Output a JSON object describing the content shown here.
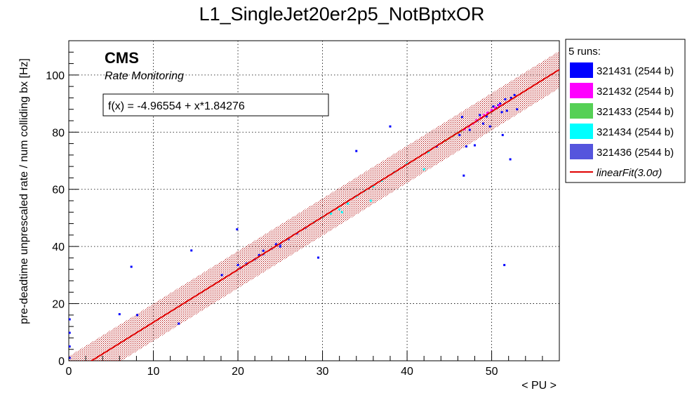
{
  "chart_data": {
    "type": "scatter",
    "title": "L1_SingleJet20er2p5_NotBptxOR",
    "xlabel": "< PU >",
    "ylabel": "pre-deadtime unprescaled rate / num colliding bx [Hz]",
    "xlim": [
      0,
      58
    ],
    "ylim": [
      0,
      112
    ],
    "xticks": [
      0,
      10,
      20,
      30,
      40,
      50
    ],
    "yticks": [
      0,
      20,
      40,
      60,
      80,
      100
    ],
    "grid": true,
    "branding": {
      "experiment": "CMS",
      "subtitle": "Rate Monitoring"
    },
    "fit_label": "f(x) = -4.96554 + x*1.84276",
    "fit": {
      "intercept": -4.96554,
      "slope": 1.84276,
      "band_halfwidth": 6.5,
      "color": "#e00000",
      "band_color": "#b00000"
    },
    "legend": {
      "header": "5 runs:",
      "position": "right",
      "fit_entry": "linearFit(3.0σ)"
    },
    "series": [
      {
        "name": "321431 (2544 b)",
        "color": "#0000ff",
        "points": [
          [
            0.1,
            14.5
          ],
          [
            0.1,
            9.8
          ],
          [
            0.1,
            5.0
          ],
          [
            0.1,
            1.0
          ],
          [
            6.0,
            16.3
          ],
          [
            7.4,
            32.9
          ],
          [
            8.1,
            16.0
          ],
          [
            13.0,
            13.0
          ],
          [
            14.5,
            38.6
          ],
          [
            18.1,
            30.0
          ],
          [
            19.9,
            46.0
          ],
          [
            20.0,
            33.5
          ],
          [
            20.3,
            32.5
          ],
          [
            21.0,
            34.0
          ],
          [
            22.0,
            35.5
          ],
          [
            22.5,
            37.0
          ],
          [
            23.0,
            38.5
          ],
          [
            24.5,
            40.8
          ],
          [
            25.0,
            40.0
          ],
          [
            29.5,
            36.1
          ],
          [
            34.0,
            73.4
          ],
          [
            38.0,
            82.0
          ],
          [
            43.5,
            75.0
          ],
          [
            46.2,
            79.0
          ],
          [
            46.5,
            85.3
          ],
          [
            46.7,
            64.8
          ],
          [
            47.0,
            75.0
          ],
          [
            47.4,
            80.8
          ],
          [
            48.0,
            75.4
          ],
          [
            48.3,
            84.0
          ],
          [
            48.6,
            86.0
          ],
          [
            49.0,
            83.0
          ],
          [
            49.4,
            85.5
          ],
          [
            49.8,
            82.0
          ],
          [
            50.0,
            87.5
          ],
          [
            50.2,
            89.0
          ],
          [
            50.5,
            88.5
          ],
          [
            50.8,
            89.5
          ],
          [
            51.0,
            90.0
          ],
          [
            51.2,
            87.0
          ],
          [
            51.3,
            79.0
          ],
          [
            51.5,
            33.5
          ],
          [
            51.6,
            91.5
          ],
          [
            51.8,
            87.5
          ],
          [
            52.2,
            70.5
          ],
          [
            52.3,
            92.0
          ],
          [
            52.7,
            93.0
          ],
          [
            53.0,
            88.0
          ]
        ]
      },
      {
        "name": "321432 (2544 b)",
        "color": "#ff00ff",
        "points": [
          [
            46.8,
            81.0
          ],
          [
            47.3,
            82.0
          ],
          [
            47.8,
            83.0
          ],
          [
            48.2,
            84.2
          ],
          [
            48.7,
            85.0
          ],
          [
            49.1,
            86.0
          ],
          [
            49.5,
            86.8
          ],
          [
            50.0,
            87.8
          ],
          [
            50.4,
            88.6
          ],
          [
            50.9,
            89.5
          ]
        ]
      },
      {
        "name": "321433 (2544 b)",
        "color": "#55d055",
        "points": [
          [
            44.5,
            77.0
          ],
          [
            45.0,
            77.9
          ],
          [
            45.5,
            78.8
          ],
          [
            46.0,
            79.8
          ],
          [
            46.4,
            80.5
          ]
        ]
      },
      {
        "name": "321434 (2544 b)",
        "color": "#00ffff",
        "points": [
          [
            29.0,
            48.5
          ],
          [
            30.0,
            50.3
          ],
          [
            31.0,
            51.5
          ],
          [
            32.0,
            53.0
          ],
          [
            32.3,
            52.0
          ],
          [
            33.0,
            55.0
          ],
          [
            34.0,
            57.5
          ],
          [
            35.0,
            59.5
          ],
          [
            35.7,
            56.0
          ],
          [
            36.0,
            61.0
          ],
          [
            37.0,
            63.0
          ],
          [
            38.5,
            66.0
          ],
          [
            40.0,
            69.0
          ],
          [
            42.0,
            67.0
          ],
          [
            42.5,
            73.0
          ]
        ]
      },
      {
        "name": "321436 (2544 b)",
        "color": "#5555dd",
        "points": [
          [
            21.0,
            33.8
          ],
          [
            22.0,
            35.5
          ],
          [
            23.0,
            37.2
          ],
          [
            24.0,
            39.2
          ],
          [
            25.0,
            40.7
          ],
          [
            26.0,
            42.5
          ],
          [
            27.0,
            44.5
          ],
          [
            28.0,
            46.5
          ]
        ]
      }
    ]
  }
}
